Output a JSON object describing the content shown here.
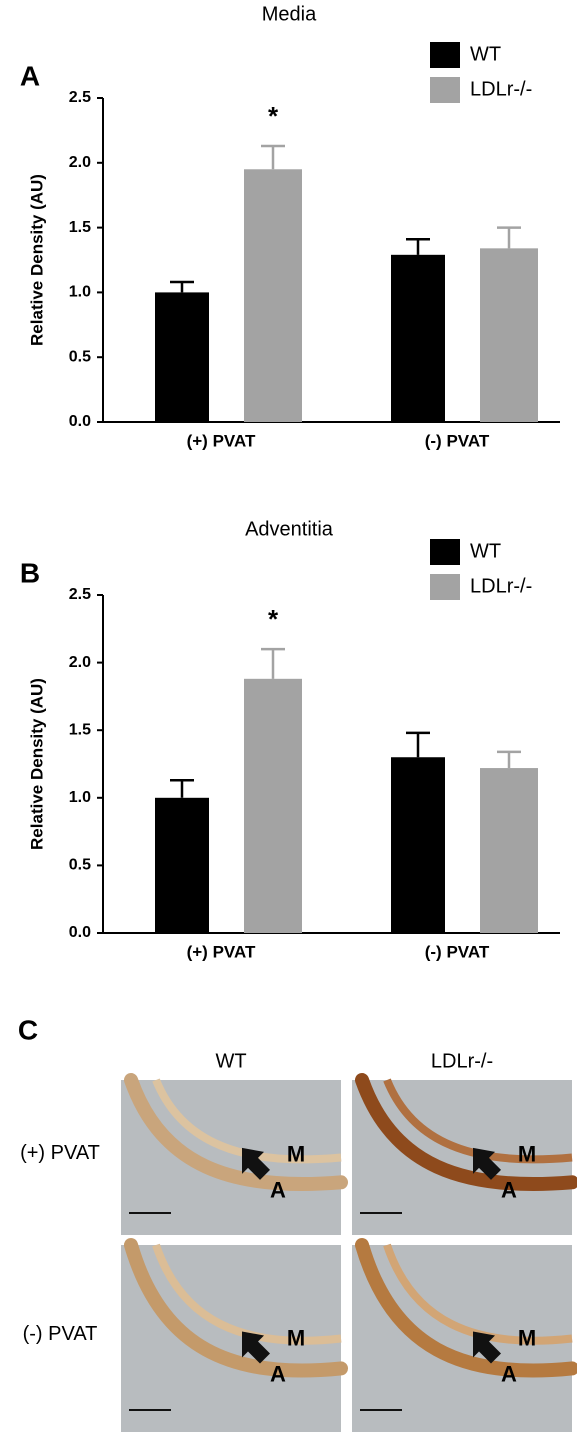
{
  "chart_data": [
    {
      "type": "bar",
      "panel": "A",
      "title": "Media",
      "y_label": "Relative Density (AU)",
      "categories": [
        "(+) PVAT",
        "(-) PVAT"
      ],
      "series": [
        {
          "name": "WT",
          "color": "#000000",
          "values": [
            1.0,
            1.29
          ],
          "errors": [
            0.08,
            0.12
          ]
        },
        {
          "name": "LDLr-/-",
          "color": "#a3a3a3",
          "values": [
            1.95,
            1.34
          ],
          "errors": [
            0.18,
            0.16
          ]
        }
      ],
      "annotation": "*",
      "legend": "upper right",
      "ylim": [
        0,
        2.5
      ],
      "yticks": [
        {
          "value": 0,
          "label": "0.0"
        },
        0.5,
        {
          "value": 1,
          "label": "1.0"
        },
        1.5,
        {
          "value": 2,
          "label": "2.0"
        },
        2.5
      ]
    },
    {
      "type": "bar",
      "panel": "B",
      "title": "Adventitia",
      "y_label": "Relative Density (AU)",
      "categories": [
        "(+) PVAT",
        "(-) PVAT"
      ],
      "series": [
        {
          "name": "WT",
          "color": "#000000",
          "values": [
            1.0,
            1.3
          ],
          "errors": [
            0.13,
            0.18
          ]
        },
        {
          "name": "LDLr-/-",
          "color": "#a3a3a3",
          "values": [
            1.88,
            1.22
          ],
          "errors": [
            0.22,
            0.12
          ]
        }
      ],
      "annotation": "*",
      "legend": "upper right",
      "ylim": [
        0,
        2.5
      ],
      "yticks": [
        {
          "value": 0,
          "label": "0.0"
        },
        0.5,
        {
          "value": 1,
          "label": "1.0"
        },
        1.5,
        {
          "value": 2,
          "label": "2.0"
        },
        2.5
      ]
    }
  ],
  "micrographs": {
    "panel": "C",
    "columns": [
      "WT",
      "LDLr-/-"
    ],
    "rows": [
      "(+) PVAT",
      "(-) PVAT"
    ],
    "images": [
      {
        "labels": [
          "M",
          "A"
        ]
      },
      {
        "labels": [
          "M",
          "A"
        ]
      },
      {
        "labels": [
          "M",
          "A"
        ]
      },
      {
        "labels": [
          "M",
          "A"
        ]
      }
    ]
  }
}
